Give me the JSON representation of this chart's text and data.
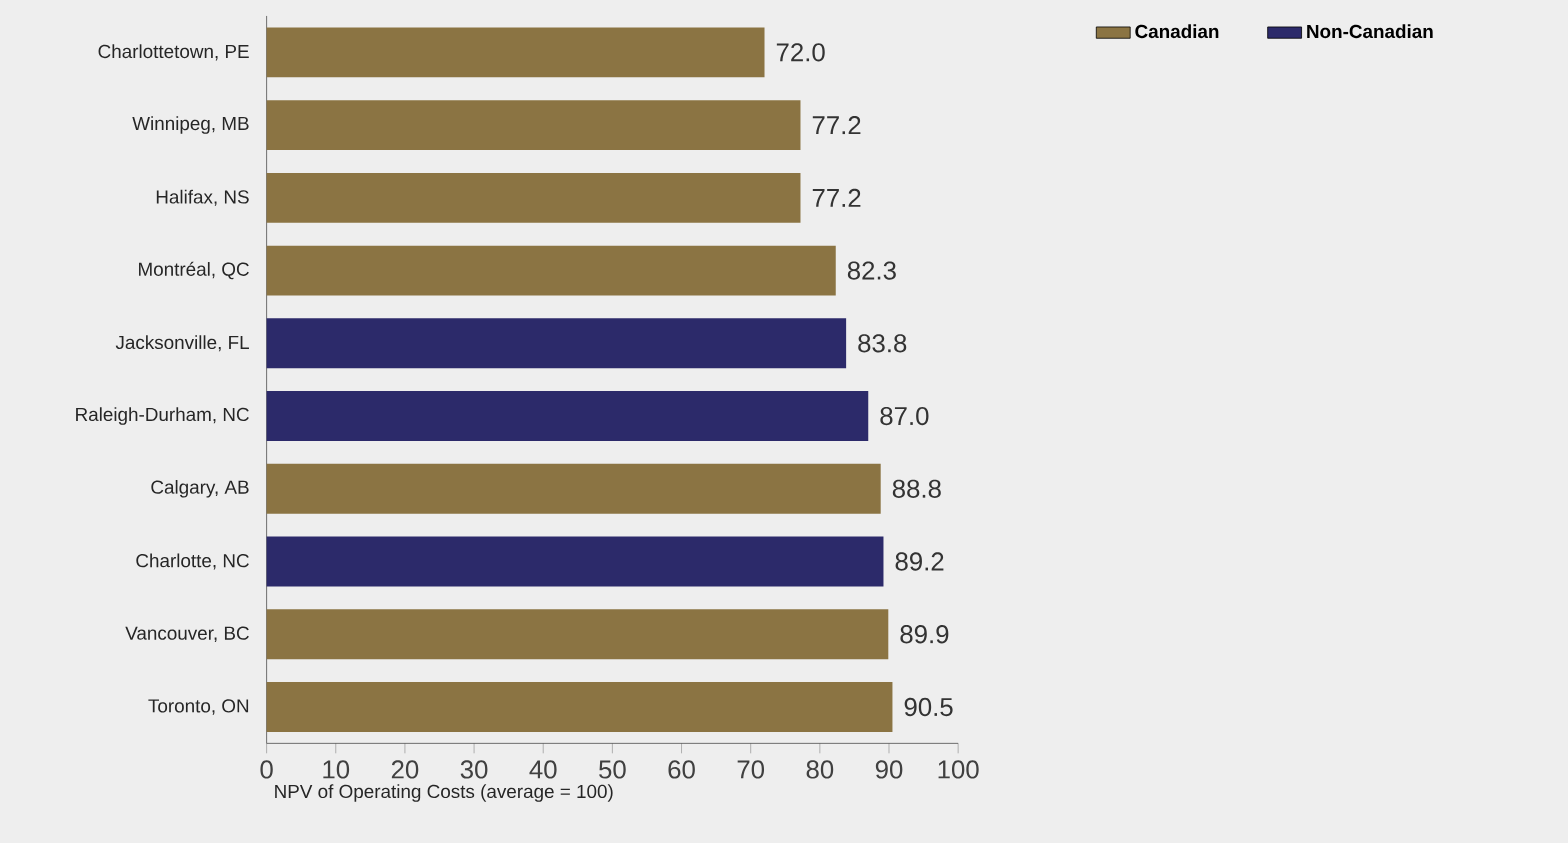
{
  "chart_data": {
    "type": "bar",
    "orientation": "horizontal",
    "xlabel": "NPV of Operating Costs (average = 100)",
    "categories": [
      "Charlottetown, PE",
      "Winnipeg, MB",
      "Halifax, NS",
      "Montréal, QC",
      "Jacksonville, FL",
      "Raleigh-Durham, NC",
      "Calgary, AB",
      "Charlotte, NC",
      "Vancouver, BC",
      "Toronto, ON"
    ],
    "series": [
      {
        "name": "Canadian",
        "color": "#8b7443",
        "values": [
          72.0,
          77.2,
          77.2,
          82.3,
          null,
          null,
          88.8,
          null,
          89.9,
          90.5
        ],
        "value_labels": [
          "72.0",
          "77.2",
          "77.2",
          "82.3",
          null,
          null,
          "88.8",
          null,
          "89.9",
          "90.5"
        ]
      },
      {
        "name": "Non-Canadian",
        "color": "#2c2a6a",
        "values": [
          null,
          null,
          null,
          null,
          83.8,
          87.0,
          null,
          89.2,
          null,
          null
        ],
        "value_labels": [
          null,
          null,
          null,
          null,
          "83.8",
          "87.0",
          null,
          "89.2",
          null,
          null
        ]
      }
    ],
    "xlim": [
      0,
      100
    ],
    "xticks": [
      0,
      10,
      20,
      30,
      40,
      50,
      60,
      70,
      80,
      90,
      100
    ],
    "legend": "top right"
  }
}
